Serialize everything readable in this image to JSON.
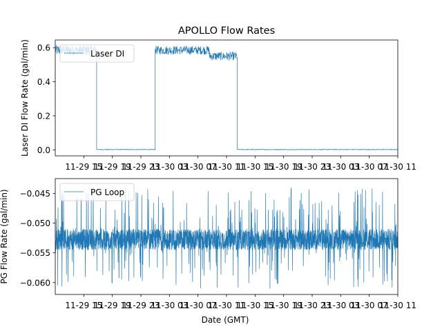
{
  "chart_data": [
    {
      "type": "line",
      "title": "APOLLO Flow Rates",
      "xlabel": "",
      "ylabel": "Laser DI Flow Rate (gal/min)",
      "xlim": [
        11.0,
        59.0
      ],
      "ylim": [
        -0.035,
        0.645
      ],
      "yticks": [
        0.0,
        0.2,
        0.4,
        0.6
      ],
      "ytick_labels": [
        "0.0",
        "0.2",
        "0.4",
        "0.6"
      ],
      "xticks": [
        15,
        19,
        23,
        27,
        31,
        35,
        39,
        43,
        47,
        51,
        55,
        59
      ],
      "xtick_labels": [
        "11-29 15",
        "11-29 19",
        "11-29 23",
        "11-30 03",
        "11-30 07",
        "11-30 11",
        "11-30 15",
        "11-30 19",
        "11-30 23",
        "11-30 03",
        "11-30 07",
        "11-30 11"
      ],
      "legend": {
        "entries": [
          "Laser DI"
        ],
        "location": "upper left"
      },
      "color": "#1f77b4",
      "series": [
        {
          "name": "Laser DI",
          "segments": [
            {
              "x_start": 11.0,
              "x_end": 16.8,
              "level": 0.585,
              "noise": 0.03
            },
            {
              "x_start": 16.8,
              "x_end": 25.0,
              "level": 0.002,
              "noise": 0.002
            },
            {
              "x_start": 25.0,
              "x_end": 32.6,
              "level": 0.585,
              "noise": 0.025
            },
            {
              "x_start": 32.6,
              "x_end": 36.5,
              "level": 0.55,
              "noise": 0.025
            },
            {
              "x_start": 36.5,
              "x_end": 59.0,
              "level": 0.002,
              "noise": 0.002
            }
          ]
        }
      ]
    },
    {
      "type": "line",
      "title": "",
      "xlabel": "Date (GMT)",
      "ylabel": "PG Flow Rate (gal/min)",
      "xlim": [
        11.0,
        59.0
      ],
      "ylim": [
        -0.062,
        -0.0425
      ],
      "yticks": [
        -0.06,
        -0.055,
        -0.05,
        -0.045
      ],
      "ytick_labels": [
        "−0.060",
        "−0.055",
        "−0.050",
        "−0.045"
      ],
      "xticks": [
        15,
        19,
        23,
        27,
        31,
        35,
        39,
        43,
        47,
        51,
        55,
        59
      ],
      "xtick_labels": [
        "11-29 15",
        "11-29 19",
        "11-29 23",
        "11-30 03",
        "11-30 07",
        "11-30 11",
        "11-30 15",
        "11-30 19",
        "11-30 23",
        "11-30 03",
        "11-30 07",
        "11-30 11"
      ],
      "legend": {
        "entries": [
          "PG Loop"
        ],
        "location": "upper left"
      },
      "color": "#1f77b4",
      "series": [
        {
          "name": "PG Loop",
          "band": [
            -0.0545,
            -0.051
          ],
          "spike_max": -0.044,
          "spike_min": -0.061
        }
      ]
    }
  ]
}
